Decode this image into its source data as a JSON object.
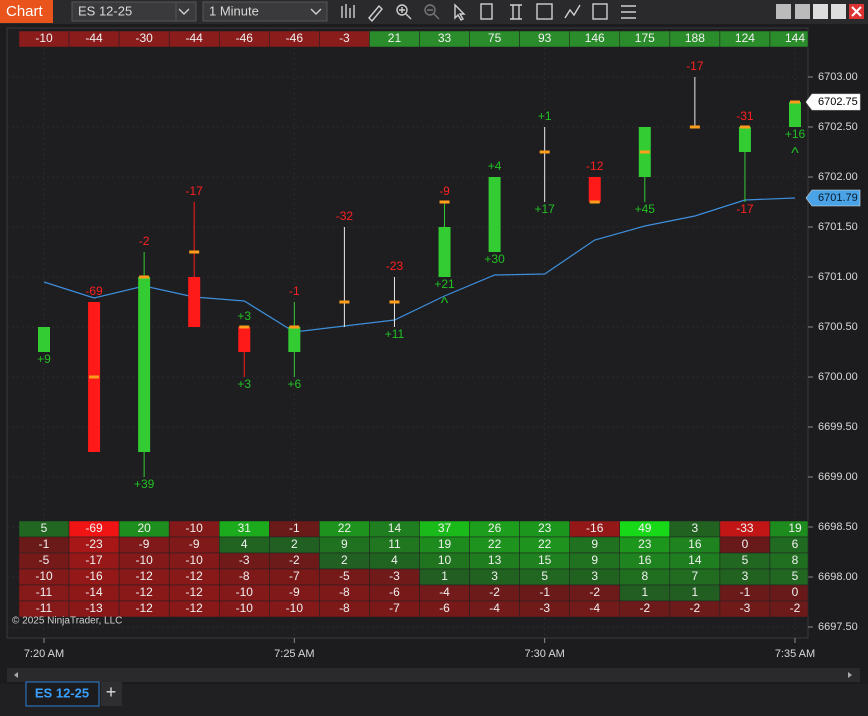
{
  "toolbar": {
    "title": "Chart",
    "instrument": "ES 12-25",
    "interval": "1 Minute"
  },
  "chart_data": {
    "type": "candlestick",
    "categories": [
      "7:20 AM",
      null,
      null,
      null,
      null,
      "7:25 AM",
      null,
      null,
      null,
      null,
      "7:30 AM",
      null,
      null,
      null,
      null,
      "7:35 AM"
    ],
    "open": [
      6700.25,
      6700.75,
      6699.25,
      6701.0,
      6700.5,
      6700.25,
      6700.75,
      6700.75,
      6701.0,
      6701.25,
      6702.25,
      6702.0,
      6702.0,
      6702.5,
      6702.25,
      6702.5
    ],
    "high": [
      6700.5,
      6700.75,
      6701.25,
      6701.75,
      6700.5,
      6700.75,
      6701.5,
      6701.0,
      6701.75,
      6702.0,
      6702.5,
      6702.0,
      6702.5,
      6703.0,
      6702.5,
      6702.75
    ],
    "low": [
      6700.25,
      6699.25,
      6699.0,
      6700.5,
      6700.0,
      6700.0,
      6700.5,
      6700.5,
      6701.0,
      6701.25,
      6701.75,
      6701.75,
      6701.75,
      6702.5,
      6701.75,
      6702.5
    ],
    "close": [
      6700.5,
      6699.25,
      6701.0,
      6700.5,
      6700.25,
      6700.5,
      6700.75,
      6700.75,
      6701.5,
      6702.0,
      6702.25,
      6701.75,
      6702.5,
      6702.5,
      6702.5,
      6702.75
    ],
    "poc": [
      null,
      6700.0,
      6701.0,
      6701.25,
      6700.5,
      6700.5,
      6700.75,
      6700.75,
      6701.75,
      null,
      6702.25,
      6701.75,
      6702.25,
      6702.5,
      6702.5,
      6702.75
    ],
    "up_color": "#33cc33",
    "down_color": "#ff1a1a",
    "doji_color": "#e8e8e8",
    "poc_color": "#ff9d1a",
    "delta_above": [
      null,
      "-69",
      "-2",
      "-17",
      "+3",
      "-1",
      "-32",
      "-23",
      "-9",
      "+4",
      "+1",
      "-12",
      null,
      "-17",
      "-31",
      null
    ],
    "delta_below": [
      "+9",
      null,
      "+39",
      null,
      "+3",
      "+6",
      null,
      "+11",
      "+21",
      "+30",
      "+17",
      null,
      "+45",
      null,
      "-17",
      "+16"
    ],
    "signals": [
      null,
      null,
      null,
      null,
      null,
      null,
      null,
      null,
      "^",
      null,
      null,
      null,
      null,
      null,
      null,
      "^"
    ],
    "ema": {
      "color": "#3d8fdc",
      "values": [
        6700.95,
        6700.79,
        6700.91,
        6700.8,
        6700.76,
        6700.45,
        6700.51,
        6700.57,
        6700.81,
        6701.02,
        6701.03,
        6701.37,
        6701.51,
        6701.61,
        6701.77,
        6701.79
      ]
    },
    "cumulative_delta": [
      -10,
      -44,
      -30,
      -44,
      -46,
      -46,
      -3,
      21,
      33,
      75,
      93,
      146,
      175,
      188,
      124,
      144
    ],
    "footprint": {
      "rows": [
        [
          5,
          -69,
          20,
          -10,
          31,
          -1,
          22,
          14,
          37,
          26,
          23,
          -16,
          49,
          3,
          -33,
          19
        ],
        [
          -1,
          -23,
          -9,
          -9,
          4,
          2,
          9,
          11,
          19,
          22,
          22,
          9,
          23,
          16,
          0,
          6
        ],
        [
          -5,
          -17,
          -10,
          -10,
          -3,
          -2,
          2,
          4,
          10,
          13,
          15,
          9,
          16,
          14,
          5,
          8
        ],
        [
          -10,
          -16,
          -12,
          -12,
          -8,
          -7,
          -5,
          -3,
          1,
          3,
          5,
          3,
          8,
          7,
          3,
          5
        ],
        [
          -11,
          -14,
          -12,
          -12,
          -10,
          -9,
          -8,
          -6,
          -4,
          -2,
          -1,
          -2,
          1,
          1,
          -1,
          0
        ],
        [
          -11,
          -13,
          -12,
          -12,
          -10,
          -10,
          -8,
          -7,
          -6,
          -4,
          -3,
          -4,
          -2,
          -2,
          -3,
          -2
        ]
      ]
    },
    "ylim": [
      6697.39,
      6703.49
    ],
    "yticks": [
      {
        "value": 6697.5,
        "label": "6697.50"
      },
      {
        "value": 6698,
        "label": "6698.00"
      },
      {
        "value": 6698.5,
        "label": "6698.50"
      },
      {
        "value": 6699,
        "label": "6699.00"
      },
      {
        "value": 6699.5,
        "label": "6699.50"
      },
      {
        "value": 6700,
        "label": "6700.00"
      },
      {
        "value": 6700.5,
        "label": "6700.50"
      },
      {
        "value": 6701,
        "label": "6701.00"
      },
      {
        "value": 6701.5,
        "label": "6701.50"
      },
      {
        "value": 6702,
        "label": "6702.00"
      },
      {
        "value": 6702.5,
        "label": "6702.50"
      },
      {
        "value": 6703,
        "label": "6703.00"
      }
    ],
    "last_price": 6702.75,
    "ema_last": 6701.79,
    "copyright": "© 2025 NinjaTrader, LLC"
  },
  "tab": {
    "label": "ES 12-25",
    "add": "+"
  }
}
